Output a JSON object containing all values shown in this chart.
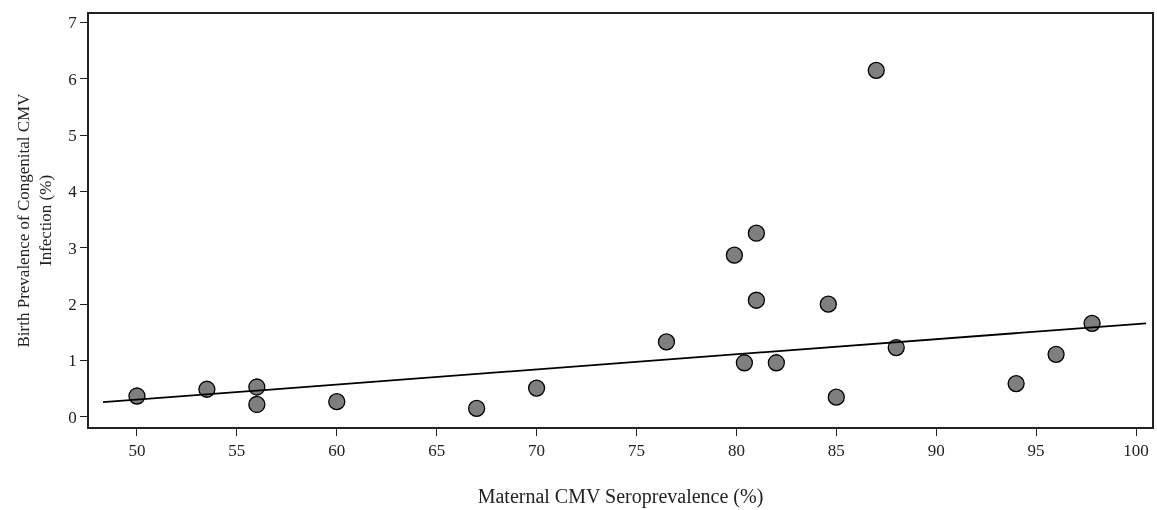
{
  "chart_data": {
    "type": "scatter",
    "xlabel": "Maternal CMV Seroprevalence (%)",
    "ylabel": "Birth Prevalence of Congenital CMV Infection (%)",
    "xlim": [
      47.6,
      100.8
    ],
    "ylim": [
      -0.18,
      7.15
    ],
    "xticks": [
      50,
      55,
      60,
      65,
      70,
      75,
      80,
      85,
      90,
      95,
      100
    ],
    "yticks": [
      0,
      1,
      2,
      3,
      4,
      5,
      6,
      7
    ],
    "grid": false,
    "legend": false,
    "series": [
      {
        "marker": "circle",
        "color": "#7f7f7f",
        "x": [
          50,
          53.5,
          56,
          56,
          60,
          67,
          70,
          76.5,
          79.9,
          80.4,
          81,
          81,
          82,
          84.6,
          85,
          87,
          88,
          94,
          96,
          97.8
        ],
        "values": [
          0.37,
          0.49,
          0.53,
          0.22,
          0.27,
          0.15,
          0.51,
          1.33,
          2.87,
          0.96,
          3.26,
          2.07,
          0.96,
          2.0,
          0.35,
          6.15,
          1.23,
          0.59,
          1.11,
          1.66
        ]
      },
      {
        "type": "line",
        "color": "#000000",
        "line_style": "solid",
        "x": [
          48.3,
          100.5
        ],
        "values": [
          0.26,
          1.66
        ]
      }
    ]
  }
}
